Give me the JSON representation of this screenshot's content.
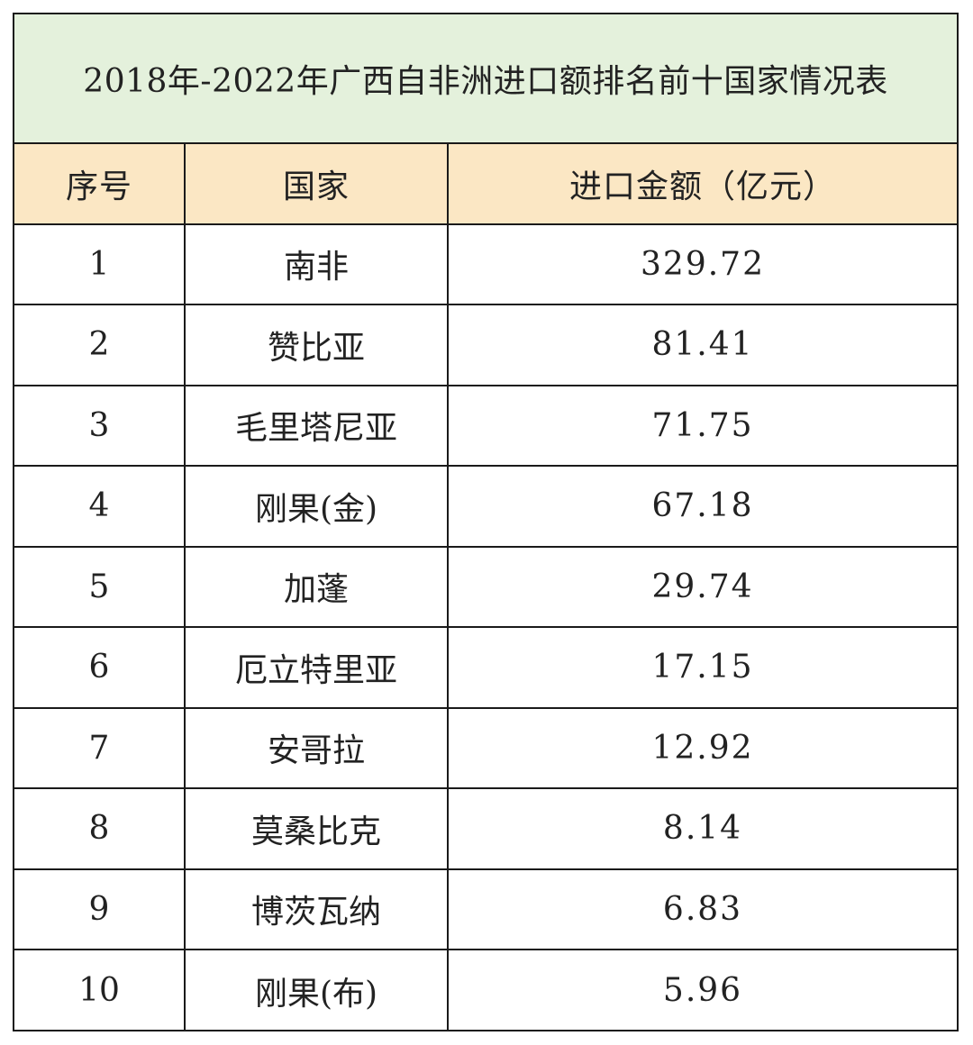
{
  "colors": {
    "title_bg": "#e4f1dc",
    "header_bg": "#fbe7c4",
    "grid": "#1a1a1a",
    "text": "#222222"
  },
  "table": {
    "title": "2018年-2022年广西自非洲进口额排名前十国家情况表",
    "headers": [
      "序号",
      "国家",
      "进口金额（亿元）"
    ],
    "rows": [
      [
        "1",
        "南非",
        "329.72"
      ],
      [
        "2",
        "赞比亚",
        "81.41"
      ],
      [
        "3",
        "毛里塔尼亚",
        "71.75"
      ],
      [
        "4",
        "刚果(金)",
        "67.18"
      ],
      [
        "5",
        "加蓬",
        "29.74"
      ],
      [
        "6",
        "厄立特里亚",
        "17.15"
      ],
      [
        "7",
        "安哥拉",
        "12.92"
      ],
      [
        "8",
        "莫桑比克",
        "8.14"
      ],
      [
        "9",
        "博茨瓦纳",
        "6.83"
      ],
      [
        "10",
        "刚果(布)",
        "5.96"
      ]
    ]
  }
}
